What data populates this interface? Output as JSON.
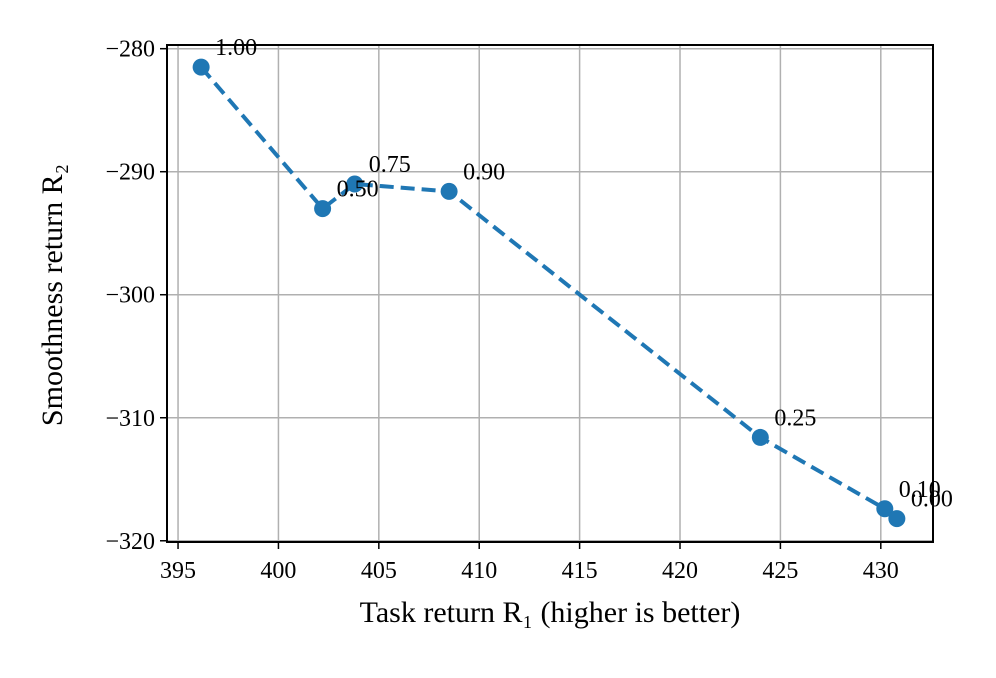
{
  "chart_data": {
    "type": "line",
    "xlabel": "Task return R₁ (higher is better)",
    "ylabel": "Smoothness return R₂",
    "series": [
      {
        "color": "#1f77b4",
        "x": [
          396.15,
          402.2,
          403.8,
          408.5,
          424.0,
          430.2,
          430.8
        ],
        "values": [
          -281.5,
          -293.0,
          -291.0,
          -291.6,
          -311.6,
          -317.4,
          -318.2
        ],
        "point_labels": [
          "1.00",
          "0.50",
          "0.75",
          "0.90",
          "0.25",
          "0.10",
          "0.00"
        ]
      }
    ],
    "xlim": [
      394.45,
      432.6
    ],
    "xticks": [
      395,
      400,
      405,
      410,
      415,
      420,
      425,
      430
    ],
    "ylim": [
      -320.1,
      -279.7
    ],
    "yticks": [
      {
        "value": -320,
        "label": "−320"
      },
      {
        "value": -310,
        "label": "−310"
      },
      {
        "value": -300,
        "label": "−300"
      },
      {
        "value": -290,
        "label": "−290"
      },
      {
        "value": -280,
        "label": "−280"
      }
    ],
    "grid": true
  }
}
